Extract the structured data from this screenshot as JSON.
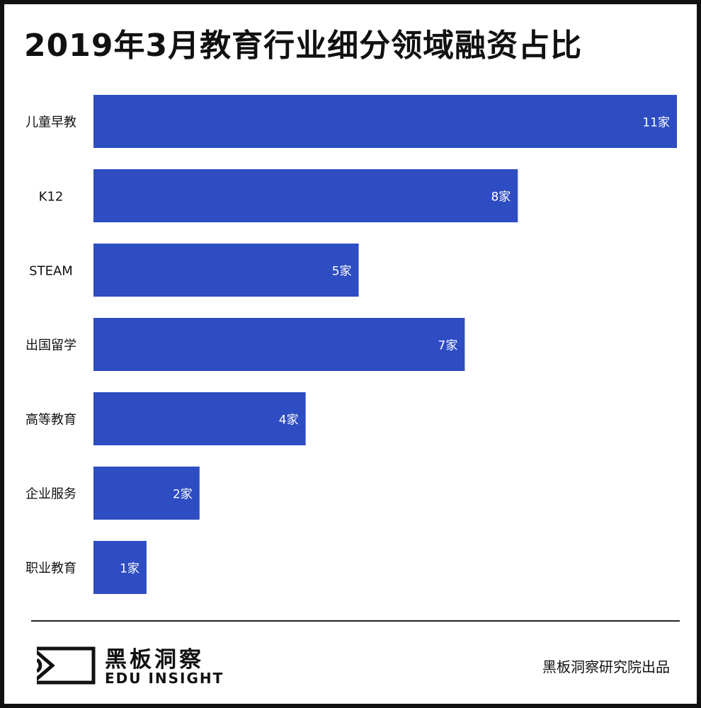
{
  "title": "2019年3月教育行业细分领域融资占比",
  "chart_data": {
    "type": "bar",
    "orientation": "horizontal",
    "title": "2019年3月教育行业细分领域融资占比",
    "categories": [
      "儿童早教",
      "K12",
      "STEAM",
      "出国留学",
      "高等教育",
      "企业服务",
      "职业教育"
    ],
    "values": [
      11,
      8,
      5,
      7,
      4,
      2,
      1
    ],
    "data_labels": [
      "11家",
      "8家",
      "5家",
      "7家",
      "4家",
      "2家",
      "1家"
    ],
    "xlim": [
      0,
      11
    ],
    "grid": false,
    "bar_color": "#2e4dc2",
    "label_color": "#ffffff"
  },
  "footer": {
    "logo_cn": "黑板洞察",
    "logo_en": "EDU INSIGHT",
    "credit": "黑板洞察研究院出品"
  }
}
